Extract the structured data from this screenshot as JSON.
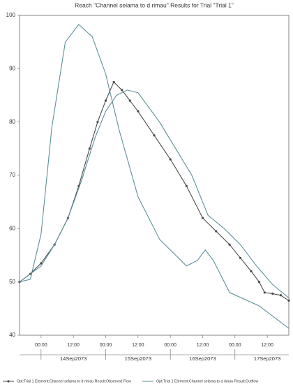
{
  "chart_data": {
    "type": "line",
    "title": "Reach \"Channel selama to d rimau\" Results for Trial \"Trial 1\"",
    "xlim": [
      -8,
      92
    ],
    "xticks": [
      {
        "value": 0,
        "label": "00:00"
      },
      {
        "value": 12,
        "label": "12:00"
      },
      {
        "value": 24,
        "label": "00:00"
      },
      {
        "value": 36,
        "label": "12:00"
      },
      {
        "value": 48,
        "label": "00:00"
      },
      {
        "value": 60,
        "label": "12:00"
      },
      {
        "value": 72,
        "label": "00:00"
      },
      {
        "value": 84,
        "label": "12:00"
      }
    ],
    "date_labels": [
      {
        "value": 12,
        "label": "14Sep2073"
      },
      {
        "value": 36,
        "label": "15Sep2073"
      },
      {
        "value": 60,
        "label": "16Sep2073"
      },
      {
        "value": 84,
        "label": "17Sep2073"
      }
    ],
    "ylim": [
      40,
      100
    ],
    "yticks": [
      40,
      50,
      60,
      70,
      80,
      90,
      100
    ],
    "series": [
      {
        "color": "#5d8f98",
        "markers": false,
        "x": [
          -8,
          -4,
          0,
          4,
          9,
          14,
          19,
          24,
          29,
          36,
          44,
          54,
          58,
          61,
          64,
          70,
          81,
          92
        ],
        "values": [
          50,
          50.5,
          59,
          79,
          95,
          98.3,
          96,
          89,
          78.5,
          66,
          58,
          53,
          54,
          56,
          54,
          48,
          45.5,
          41.3
        ]
      },
      {
        "name": "Opt:Trial 1 Element:Channel selama to d rimau Result:Observed Flow",
        "color": "#4a4a4a",
        "markers": true,
        "x": [
          -8,
          -4,
          0,
          5,
          10,
          14,
          18,
          21,
          24,
          27,
          30,
          33,
          36,
          42,
          48,
          54,
          60,
          65,
          70,
          74,
          78,
          81,
          83,
          86,
          89,
          92
        ],
        "values": [
          50,
          51.5,
          53.5,
          57,
          62,
          68,
          75,
          80,
          84,
          87.5,
          86,
          84,
          82,
          77.5,
          73,
          68,
          62,
          59.5,
          57,
          54.5,
          52,
          50,
          48,
          47.8,
          47.5,
          46.5
        ]
      },
      {
        "name": "Opt:Trial 1 Element:Channel selama to d rimau Result:Outflow",
        "color": "#5d8f98",
        "markers": false,
        "x": [
          -8,
          0,
          5,
          10,
          15,
          20,
          24,
          28,
          32,
          36,
          44,
          56,
          62,
          68,
          74,
          80,
          86,
          92
        ],
        "values": [
          50,
          53,
          57,
          62,
          69,
          77,
          82,
          85,
          86,
          85.5,
          80,
          70,
          62.5,
          60,
          57,
          53,
          49.5,
          47
        ]
      }
    ]
  }
}
